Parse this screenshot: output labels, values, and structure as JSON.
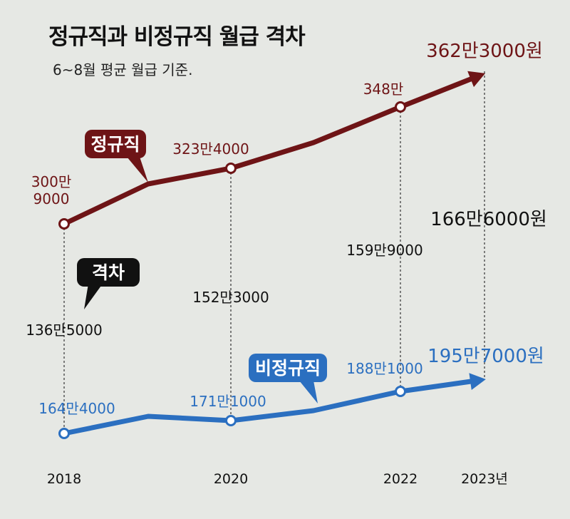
{
  "title": "정규직과 비정규직 월급 격차",
  "subtitle": "6~8월 평균 월급 기준.",
  "colors": {
    "background": "#e6e8e4",
    "regular": "#6e1416",
    "nonregular": "#2b6fc0",
    "gap": "#111111"
  },
  "chart_data": {
    "type": "line",
    "x": [
      "2018",
      "2020",
      "2022",
      "2023년"
    ],
    "x_positions": [
      2018,
      2020,
      2022,
      2023
    ],
    "ylabel": "",
    "xlabel": "",
    "grid": false,
    "series": [
      {
        "name": "정규직",
        "key": "regular",
        "color": "#6e1416",
        "values": [
          300.9,
          323.4,
          348.0,
          362.3
        ],
        "labels": [
          "300만\n9000",
          "323만4000",
          "348만",
          "362만3000원"
        ]
      },
      {
        "name": "비정규직",
        "key": "nonregular",
        "color": "#2b6fc0",
        "values": [
          164.4,
          171.1,
          188.1,
          195.7
        ],
        "labels": [
          "164만4000",
          "171만1000",
          "188만1000",
          "195만7000원"
        ]
      }
    ],
    "gap": {
      "name": "격차",
      "values": [
        136.5,
        152.3,
        159.9,
        166.6
      ],
      "labels": [
        "136만5000",
        "152만3000",
        "159만9000",
        "166만6000원"
      ]
    }
  }
}
